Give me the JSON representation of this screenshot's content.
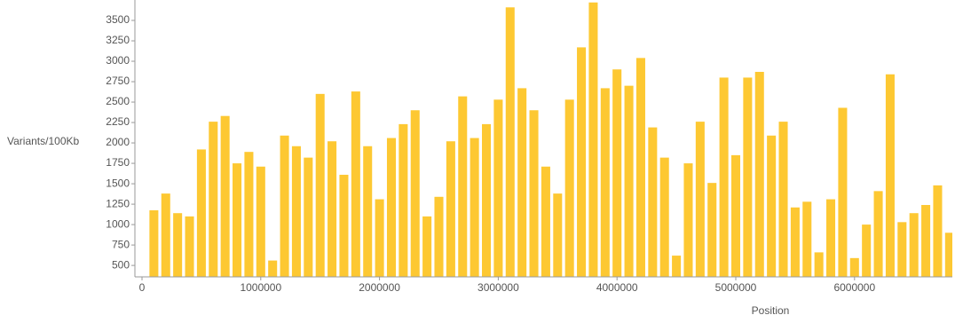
{
  "chart_data": {
    "type": "bar",
    "x_label": "Position",
    "y_label": "Variants/100Kb",
    "x": [
      100000,
      200000,
      300000,
      400000,
      500000,
      600000,
      700000,
      800000,
      900000,
      1000000,
      1100000,
      1200000,
      1300000,
      1400000,
      1500000,
      1600000,
      1700000,
      1800000,
      1900000,
      2000000,
      2100000,
      2200000,
      2300000,
      2400000,
      2500000,
      2600000,
      2700000,
      2800000,
      2900000,
      3000000,
      3100000,
      3200000,
      3300000,
      3400000,
      3500000,
      3600000,
      3700000,
      3800000,
      3900000,
      4000000,
      4100000,
      4200000,
      4300000,
      4400000,
      4500000,
      4600000,
      4700000,
      4800000,
      4900000,
      5000000,
      5100000,
      5200000,
      5300000,
      5400000,
      5500000,
      5600000,
      5700000,
      5800000,
      5900000,
      6000000,
      6100000,
      6200000,
      6300000,
      6400000,
      6500000,
      6600000,
      6700000,
      6800000
    ],
    "values": [
      1175,
      1380,
      1140,
      1100,
      1920,
      2260,
      2330,
      1750,
      1890,
      1710,
      560,
      2090,
      1960,
      1820,
      2600,
      2020,
      1610,
      2630,
      1960,
      1310,
      2060,
      2230,
      2400,
      1100,
      1340,
      2020,
      2570,
      2060,
      2230,
      2530,
      3660,
      2670,
      2400,
      1710,
      1380,
      2530,
      3170,
      3720,
      2670,
      2900,
      2700,
      3040,
      2190,
      1820,
      620,
      1750,
      2260,
      1510,
      2800,
      1850,
      2800,
      2870,
      2090,
      2260,
      1210,
      1280,
      660,
      1310,
      2430,
      590,
      1000,
      1410,
      2840,
      1030,
      1140,
      1240,
      1480,
      900
    ],
    "color": "#fdc832",
    "xlim": [
      0,
      6830000
    ],
    "ylim": [
      360,
      3750
    ],
    "xticks": [
      0,
      1000000,
      2000000,
      3000000,
      4000000,
      5000000,
      6000000
    ],
    "yticks": [
      500,
      750,
      1000,
      1250,
      1500,
      1750,
      2000,
      2250,
      2500,
      2750,
      3000,
      3250,
      3500
    ]
  }
}
